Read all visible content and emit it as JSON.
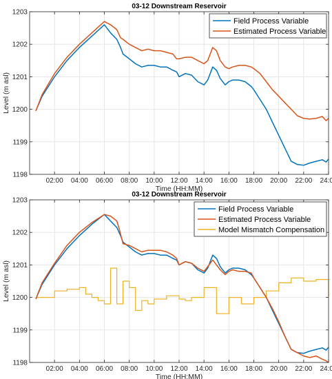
{
  "colors": {
    "field": "#0072BD",
    "estimated": "#D95319",
    "mismatch": "#EDB120",
    "grid": "#e6e6e6",
    "axis": "#262626"
  },
  "chart_data": [
    {
      "type": "line",
      "title": "03-12 Downstream Reservoir",
      "xlabel": "Time (HH:MM)",
      "ylabel": "Level (m asl)",
      "xlim": [
        0,
        24
      ],
      "ylim": [
        1198,
        1203
      ],
      "grid": true,
      "legend_position": "top-right",
      "xticks": [
        "02:00",
        "04:00",
        "06:00",
        "08:00",
        "10:00",
        "12:00",
        "14:00",
        "16:00",
        "18:00",
        "20:00",
        "22:00",
        "24:00"
      ],
      "xtick_hours": [
        2,
        4,
        6,
        8,
        10,
        12,
        14,
        16,
        18,
        20,
        22,
        24
      ],
      "yticks": [
        "1198",
        "1199",
        "1200",
        "1201",
        "1202",
        "1203"
      ],
      "ytick_values": [
        1198,
        1199,
        1200,
        1201,
        1202,
        1203
      ],
      "series": [
        {
          "name": "Field Process Variable",
          "color": "#0072BD",
          "x": [
            0.5,
            1,
            2,
            3,
            4,
            5,
            6,
            6.5,
            7,
            7.3,
            7.5,
            8,
            8.5,
            9,
            9.5,
            10,
            10.5,
            11,
            11.5,
            11.8,
            12,
            12.5,
            13,
            13.5,
            14,
            14.3,
            14.7,
            15,
            15.3,
            15.7,
            16,
            16.3,
            16.8,
            17.3,
            17.8,
            18,
            18.5,
            19,
            19.5,
            20,
            20.5,
            21,
            21.5,
            22,
            22.5,
            23,
            23.5,
            23.8,
            24
          ],
          "y": [
            1199.95,
            1200.4,
            1201.0,
            1201.5,
            1201.9,
            1202.25,
            1202.6,
            1202.35,
            1202.15,
            1201.9,
            1201.7,
            1201.55,
            1201.4,
            1201.3,
            1201.35,
            1201.35,
            1201.3,
            1201.3,
            1201.2,
            1201.15,
            1201.0,
            1201.1,
            1201.05,
            1200.85,
            1200.75,
            1200.9,
            1201.3,
            1201.2,
            1200.95,
            1200.75,
            1200.85,
            1200.9,
            1200.9,
            1200.85,
            1200.7,
            1200.6,
            1200.3,
            1200.0,
            1199.6,
            1199.2,
            1198.8,
            1198.4,
            1198.3,
            1198.28,
            1198.35,
            1198.4,
            1198.45,
            1198.38,
            1198.47
          ]
        },
        {
          "name": "Estimated Process Variable",
          "color": "#D95319",
          "x": [
            0.5,
            1,
            2,
            3,
            4,
            5,
            6,
            6.5,
            7,
            7.3,
            7.5,
            8,
            8.5,
            9,
            9.5,
            10,
            10.5,
            11,
            11.5,
            11.8,
            12,
            12.5,
            13,
            13.5,
            14,
            14.3,
            14.7,
            15,
            15.3,
            15.7,
            16,
            16.3,
            16.8,
            17.3,
            17.8,
            18,
            18.5,
            19,
            19.5,
            20,
            20.5,
            21,
            21.5,
            22,
            22.5,
            23,
            23.5,
            23.8,
            24
          ],
          "y": [
            1199.95,
            1200.45,
            1201.1,
            1201.6,
            1202.0,
            1202.35,
            1202.7,
            1202.6,
            1202.45,
            1202.2,
            1202.15,
            1202.0,
            1201.9,
            1201.8,
            1201.85,
            1201.8,
            1201.8,
            1201.75,
            1201.7,
            1201.55,
            1201.55,
            1201.6,
            1201.6,
            1201.5,
            1201.4,
            1201.5,
            1201.9,
            1201.8,
            1201.5,
            1201.3,
            1201.25,
            1201.3,
            1201.35,
            1201.35,
            1201.3,
            1201.25,
            1201.1,
            1200.85,
            1200.6,
            1200.4,
            1200.2,
            1200.0,
            1199.8,
            1199.72,
            1199.7,
            1199.72,
            1199.78,
            1199.65,
            1199.72
          ]
        }
      ]
    },
    {
      "type": "line",
      "title": "03-12 Downstream Reservoir",
      "xlabel": "Time (HH:MM)",
      "ylabel": "Level (m asl)",
      "xlim": [
        0,
        24
      ],
      "ylim": [
        1198,
        1203
      ],
      "grid": true,
      "legend_position": "top-right",
      "xticks": [
        "02:00",
        "04:00",
        "06:00",
        "08:00",
        "10:00",
        "12:00",
        "14:00",
        "16:00",
        "18:00",
        "20:00",
        "22:00",
        "24:00"
      ],
      "xtick_hours": [
        2,
        4,
        6,
        8,
        10,
        12,
        14,
        16,
        18,
        20,
        22,
        24
      ],
      "yticks": [
        "1198",
        "1199",
        "1200",
        "1201",
        "1202",
        "1203"
      ],
      "ytick_values": [
        1198,
        1199,
        1200,
        1201,
        1202,
        1203
      ],
      "series": [
        {
          "name": "Field Process Variable",
          "color": "#0072BD",
          "x": [
            0.5,
            1,
            2,
            3,
            4,
            5,
            6,
            6.5,
            7,
            7.3,
            7.5,
            8,
            8.5,
            9,
            9.5,
            10,
            10.5,
            11,
            11.5,
            11.8,
            12,
            12.5,
            13,
            13.5,
            14,
            14.3,
            14.7,
            15,
            15.3,
            15.7,
            16,
            16.3,
            16.8,
            17.3,
            17.8,
            18,
            18.5,
            19,
            19.5,
            20,
            20.5,
            21,
            21.5,
            22,
            22.5,
            23,
            23.5,
            23.8,
            24
          ],
          "y": [
            1199.95,
            1200.4,
            1201.0,
            1201.5,
            1201.9,
            1202.25,
            1202.55,
            1202.35,
            1202.15,
            1201.9,
            1201.7,
            1201.55,
            1201.4,
            1201.3,
            1201.35,
            1201.35,
            1201.3,
            1201.3,
            1201.2,
            1201.15,
            1201.0,
            1201.1,
            1201.05,
            1200.85,
            1200.75,
            1200.9,
            1201.3,
            1201.2,
            1200.95,
            1200.75,
            1200.85,
            1200.9,
            1200.9,
            1200.85,
            1200.7,
            1200.6,
            1200.3,
            1200.0,
            1199.6,
            1199.2,
            1198.8,
            1198.4,
            1198.3,
            1198.28,
            1198.35,
            1198.4,
            1198.45,
            1198.38,
            1198.47
          ]
        },
        {
          "name": "Estimated Process Variable",
          "color": "#D95319",
          "x": [
            0.5,
            1,
            2,
            3,
            4,
            5,
            6,
            6.5,
            7,
            7.2,
            7.5,
            8,
            8.5,
            9,
            9.5,
            10,
            10.5,
            11,
            11.5,
            11.8,
            12,
            12.5,
            13,
            13.5,
            14,
            14.3,
            14.7,
            15,
            15.3,
            15.7,
            16,
            16.3,
            16.8,
            17.3,
            17.8,
            18,
            18.5,
            19,
            19.5,
            20,
            20.5,
            21,
            21.5,
            22,
            22.5,
            23,
            23.5,
            23.8,
            24
          ],
          "y": [
            1199.95,
            1200.45,
            1201.05,
            1201.6,
            1202.0,
            1202.3,
            1202.55,
            1202.5,
            1202.35,
            1202.1,
            1201.65,
            1201.6,
            1201.5,
            1201.4,
            1201.45,
            1201.45,
            1201.45,
            1201.4,
            1201.3,
            1201.2,
            1201.0,
            1201.1,
            1201.05,
            1200.9,
            1200.8,
            1200.95,
            1201.15,
            1201.0,
            1200.85,
            1200.7,
            1200.8,
            1200.85,
            1200.8,
            1200.8,
            1200.75,
            1200.6,
            1200.3,
            1200.0,
            1199.65,
            1199.25,
            1198.8,
            1198.4,
            1198.3,
            1198.2,
            1198.15,
            1198.2,
            1198.1,
            1198.05,
            1198.0
          ]
        },
        {
          "name": "Model Mismatch Compensation",
          "color": "#EDB120",
          "step": true,
          "x": [
            0.5,
            2,
            3,
            4,
            4.5,
            5,
            5.5,
            6,
            6.5,
            7,
            7.5,
            8,
            8.5,
            9,
            9.5,
            10,
            11,
            12,
            12.5,
            13,
            14,
            15,
            15.5,
            16,
            17,
            18,
            19,
            20,
            21,
            22,
            23,
            24
          ],
          "y": [
            1200.0,
            1200.2,
            1200.25,
            1200.3,
            1200.1,
            1200.0,
            1199.9,
            1199.8,
            1200.9,
            1199.8,
            1200.5,
            1200.3,
            1199.6,
            1199.9,
            1199.8,
            1199.95,
            1200.05,
            1199.95,
            1199.9,
            1200.0,
            1200.3,
            1199.5,
            1199.5,
            1200.0,
            1199.8,
            1200.0,
            1200.2,
            1200.45,
            1200.6,
            1200.5,
            1200.55,
            1200.05
          ]
        }
      ]
    }
  ]
}
